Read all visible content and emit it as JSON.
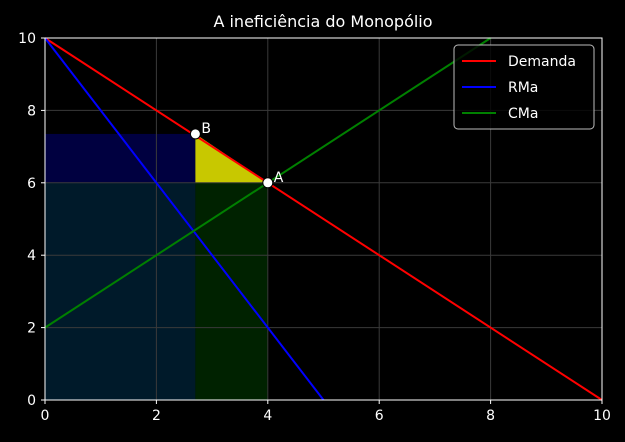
{
  "chart_data": {
    "type": "line",
    "title": "A ineficiência do Monopólio",
    "xlabel": "",
    "ylabel": "",
    "xlim": [
      0,
      10
    ],
    "ylim": [
      0,
      10
    ],
    "xticks": [
      "0",
      "2",
      "4",
      "6",
      "8",
      "10"
    ],
    "yticks": [
      "0",
      "2",
      "4",
      "6",
      "8",
      "10"
    ],
    "grid": true,
    "legend_position": "top-right",
    "series": [
      {
        "name": "Demanda",
        "color": "#ff0000",
        "points": [
          [
            0,
            10
          ],
          [
            10,
            0
          ]
        ]
      },
      {
        "name": "RMa",
        "color": "#0000ff",
        "points": [
          [
            0,
            10
          ],
          [
            5,
            0
          ]
        ]
      },
      {
        "name": "CMa",
        "color": "#008000",
        "points": [
          [
            0,
            2
          ],
          [
            8,
            10
          ]
        ]
      }
    ],
    "regions": [
      {
        "name": "upper-rectangle",
        "color": "#000040",
        "x": [
          0,
          2.7
        ],
        "y": [
          6,
          7.35
        ]
      },
      {
        "name": "lower-rectangle",
        "color": "#001a2a",
        "x": [
          0,
          2.7
        ],
        "y": [
          0,
          6
        ]
      },
      {
        "name": "green-rectangle",
        "color": "#002200",
        "x": [
          2.7,
          4
        ],
        "y": [
          0,
          6
        ]
      },
      {
        "name": "deadweight-triangle",
        "color": "#c8c800",
        "polygon": [
          [
            2.7,
            7.35
          ],
          [
            2.7,
            6
          ],
          [
            4,
            6
          ]
        ]
      }
    ],
    "annotations": [
      {
        "label": "B",
        "x": 2.7,
        "y": 7.35
      },
      {
        "label": "A",
        "x": 4,
        "y": 6
      }
    ]
  }
}
